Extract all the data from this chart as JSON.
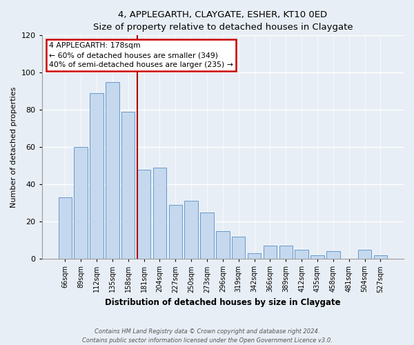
{
  "title": "4, APPLEGARTH, CLAYGATE, ESHER, KT10 0ED",
  "subtitle": "Size of property relative to detached houses in Claygate",
  "xlabel": "Distribution of detached houses by size in Claygate",
  "ylabel": "Number of detached properties",
  "categories": [
    "66sqm",
    "89sqm",
    "112sqm",
    "135sqm",
    "158sqm",
    "181sqm",
    "204sqm",
    "227sqm",
    "250sqm",
    "273sqm",
    "296sqm",
    "319sqm",
    "342sqm",
    "366sqm",
    "389sqm",
    "412sqm",
    "435sqm",
    "458sqm",
    "481sqm",
    "504sqm",
    "527sqm"
  ],
  "values": [
    33,
    60,
    89,
    95,
    79,
    48,
    49,
    29,
    31,
    25,
    15,
    12,
    3,
    7,
    7,
    5,
    2,
    4,
    0,
    5,
    2
  ],
  "bar_color": "#c5d8ee",
  "bar_edge_color": "#6699cc",
  "background_color": "#e8eef5",
  "plot_background": "#e8eef5",
  "marker_bin_index": 5,
  "marker_line_color": "#aa0000",
  "annotation_line1": "4 APPLEGARTH: 178sqm",
  "annotation_line2": "← 60% of detached houses are smaller (349)",
  "annotation_line3": "40% of semi-detached houses are larger (235) →",
  "annotation_box_facecolor": "#ffffff",
  "annotation_box_edgecolor": "#cc0000",
  "ylim": [
    0,
    120
  ],
  "yticks": [
    0,
    20,
    40,
    60,
    80,
    100,
    120
  ],
  "footnote1": "Contains HM Land Registry data © Crown copyright and database right 2024.",
  "footnote2": "Contains public sector information licensed under the Open Government Licence v3.0."
}
